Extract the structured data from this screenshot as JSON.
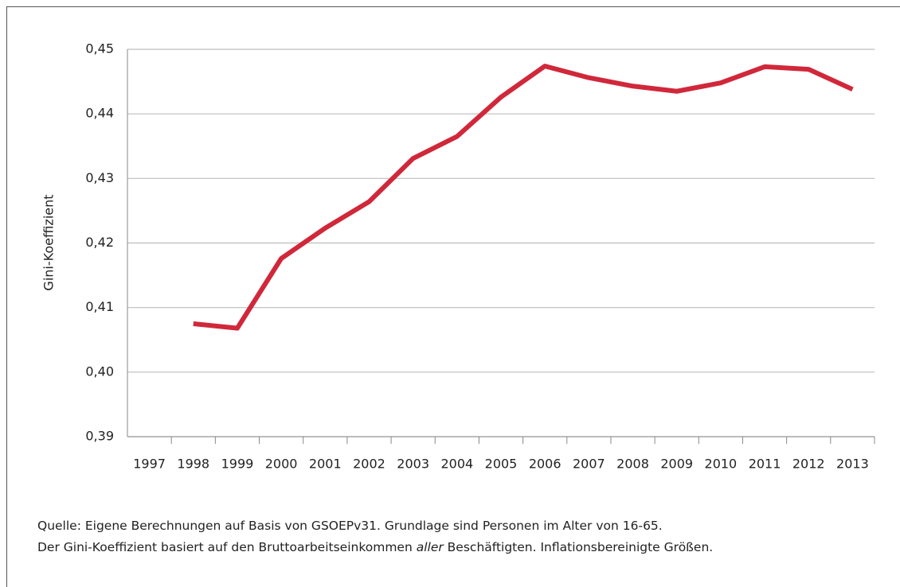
{
  "chart_data": {
    "type": "line",
    "y_label": "Gini-Koeffizient",
    "categories": [
      "1997",
      "1998",
      "1999",
      "2000",
      "2001",
      "2002",
      "2003",
      "2004",
      "2005",
      "2006",
      "2007",
      "2008",
      "2009",
      "2010",
      "2011",
      "2012",
      "2013"
    ],
    "series": [
      {
        "name": "Gini-Koeffizient",
        "color": "#d0283a",
        "values": [
          null,
          0.4075,
          0.4068,
          0.4176,
          0.4223,
          0.4264,
          0.4331,
          0.4365,
          0.4426,
          0.4474,
          0.4456,
          0.4443,
          0.4435,
          0.4448,
          0.4473,
          0.4469,
          0.4438
        ]
      }
    ],
    "ylim": [
      0.39,
      0.45
    ],
    "yticks": [
      {
        "value": 0.39,
        "label": "0,39"
      },
      {
        "value": 0.4,
        "label": "0,40"
      },
      {
        "value": 0.41,
        "label": "0,41"
      },
      {
        "value": 0.42,
        "label": "0,42"
      },
      {
        "value": 0.43,
        "label": "0,43"
      },
      {
        "value": 0.44,
        "label": "0,44"
      },
      {
        "value": 0.45,
        "label": "0,45"
      }
    ],
    "grid": true,
    "notes": {
      "line1": "Quelle: Eigene Berechnungen auf Basis von GSOEPv31. Grundlage sind Personen im Alter von 16-65.",
      "line2": [
        "Der Gini-Koeffizient basiert auf den Bruttoarbeitseinkommen ",
        "aller",
        " Beschäftigten. Inflationsbereinigte Größen."
      ]
    }
  }
}
